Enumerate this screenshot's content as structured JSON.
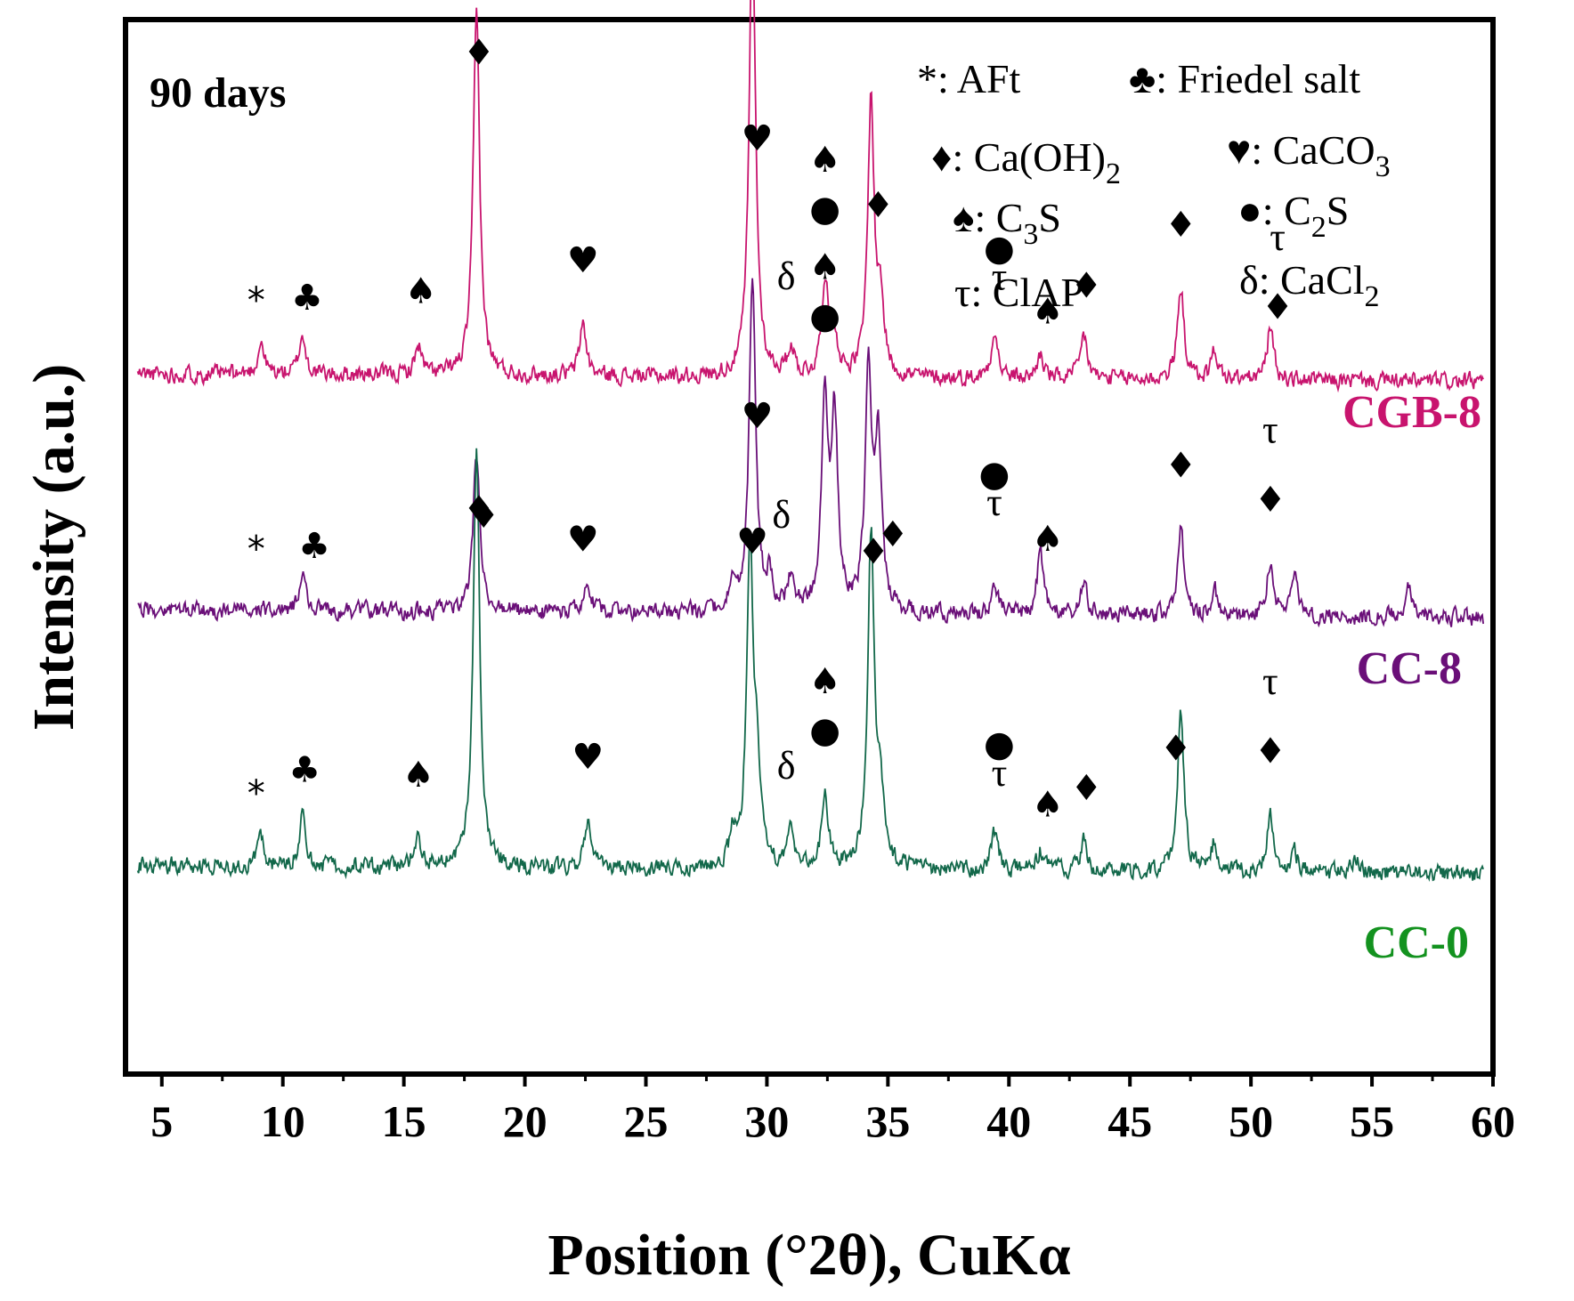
{
  "chart_data": {
    "type": "line",
    "title": "90 days",
    "xlabel": "Position (°2θ), CuKα",
    "ylabel": "Intensity (a.u.)",
    "xlim": [
      3.5,
      60
    ],
    "ylim": [
      0,
      100
    ],
    "x_ticks": [
      5,
      10,
      15,
      20,
      25,
      30,
      35,
      40,
      45,
      50,
      55,
      60
    ],
    "y_ticks_shown": false,
    "legend": [
      {
        "symbol": "*",
        "text": ": AFt"
      },
      {
        "symbol": "♣",
        "text": ": Friedel salt"
      },
      {
        "symbol": "♦",
        "text": ": Ca(OH)",
        "sub": "2"
      },
      {
        "symbol": "♥",
        "text": ": CaCO",
        "sub": "3"
      },
      {
        "symbol": "♠",
        "text": ": C",
        "sub": "3",
        "tail": "S"
      },
      {
        "symbol": "●",
        "text": ": C",
        "sub": "2",
        "tail": "S"
      },
      {
        "symbol": "τ",
        "text": ": ClAP"
      },
      {
        "symbol": "δ",
        "text": ": CaCl",
        "sub": "2"
      }
    ],
    "series": [
      {
        "name": "CGB-8",
        "color": "#c8146e",
        "baseline": 36,
        "tilt": 0.8,
        "noise": 0.75,
        "seed": 11,
        "peaks": [
          [
            9.1,
            3.2
          ],
          [
            10.8,
            4.0
          ],
          [
            15.6,
            3.0
          ],
          [
            18.0,
            37.0
          ],
          [
            22.4,
            5.5
          ],
          [
            29.4,
            46.0
          ],
          [
            31.0,
            3.0
          ],
          [
            32.4,
            10.0
          ],
          [
            32.8,
            4.0
          ],
          [
            34.3,
            28.0
          ],
          [
            34.7,
            7.0
          ],
          [
            39.4,
            5.0
          ],
          [
            41.3,
            2.5
          ],
          [
            43.1,
            4.5
          ],
          [
            47.1,
            9.5
          ],
          [
            48.5,
            3.0
          ],
          [
            50.8,
            5.5
          ]
        ]
      },
      {
        "name": "CC-8",
        "color": "#6a0f78",
        "baseline": 60,
        "tilt": 0.8,
        "noise": 0.75,
        "seed": 29,
        "peaks": [
          [
            10.8,
            4.0
          ],
          [
            18.0,
            16.0
          ],
          [
            22.6,
            3.0
          ],
          [
            28.6,
            3.0
          ],
          [
            29.4,
            34.0
          ],
          [
            30.1,
            3.0
          ],
          [
            31.0,
            3.5
          ],
          [
            32.4,
            21.0
          ],
          [
            32.8,
            19.0
          ],
          [
            34.2,
            24.0
          ],
          [
            34.6,
            17.0
          ],
          [
            39.4,
            3.0
          ],
          [
            41.3,
            6.5
          ],
          [
            43.1,
            3.0
          ],
          [
            47.1,
            9.0
          ],
          [
            48.5,
            2.5
          ],
          [
            50.8,
            5.5
          ],
          [
            51.8,
            4.5
          ],
          [
            56.5,
            3.0
          ]
        ]
      },
      {
        "name": "CC-0",
        "color": "#12684a",
        "baseline": 86,
        "tilt": 0.8,
        "noise": 0.75,
        "seed": 47,
        "peaks": [
          [
            9.1,
            3.0
          ],
          [
            10.8,
            5.0
          ],
          [
            15.6,
            3.0
          ],
          [
            18.0,
            42.0
          ],
          [
            22.6,
            5.0
          ],
          [
            28.6,
            3.0
          ],
          [
            29.3,
            33.0
          ],
          [
            29.6,
            8.0
          ],
          [
            31.0,
            4.0
          ],
          [
            32.4,
            7.5
          ],
          [
            34.3,
            34.0
          ],
          [
            34.7,
            7.0
          ],
          [
            39.4,
            4.0
          ],
          [
            41.3,
            2.0
          ],
          [
            43.1,
            3.0
          ],
          [
            47.1,
            16.0
          ],
          [
            48.5,
            3.0
          ],
          [
            50.8,
            6.0
          ],
          [
            51.8,
            2.0
          ],
          [
            54.3,
            1.5
          ]
        ]
      }
    ],
    "series_labels": [
      {
        "text": "CGB-8",
        "color": "#c8146e"
      },
      {
        "text": "CC-8",
        "color": "#6a0f78"
      },
      {
        "text": "CC-0",
        "color": "#13921f"
      }
    ],
    "phase_markers": [
      {
        "series": "CGB-8",
        "x": 8.9,
        "label": "*"
      },
      {
        "series": "CGB-8",
        "x": 11.0,
        "label": "♣"
      },
      {
        "series": "CGB-8",
        "x": 15.7,
        "label": "♠"
      },
      {
        "series": "CGB-8",
        "x": 18.1,
        "label": "♦"
      },
      {
        "series": "CGB-8",
        "x": 22.4,
        "label": "♥"
      },
      {
        "series": "CGB-8",
        "x": 29.6,
        "label": "♥"
      },
      {
        "series": "CGB-8",
        "x": 30.8,
        "label": "δ"
      },
      {
        "series": "CGB-8",
        "x": 32.4,
        "label": "●"
      },
      {
        "series": "CGB-8",
        "x": 32.4,
        "label": "♠"
      },
      {
        "series": "CGB-8",
        "x": 34.6,
        "label": "♦"
      },
      {
        "series": "CGB-8",
        "x": 39.6,
        "label": "τ"
      },
      {
        "series": "CGB-8",
        "x": 39.6,
        "label": "●"
      },
      {
        "series": "CGB-8",
        "x": 41.6,
        "label": "♠"
      },
      {
        "series": "CGB-8",
        "x": 43.2,
        "label": "♦"
      },
      {
        "series": "CGB-8",
        "x": 47.1,
        "label": "♦"
      },
      {
        "series": "CGB-8",
        "x": 51.1,
        "label": "♦"
      },
      {
        "series": "CGB-8",
        "x": 51.1,
        "label": "τ"
      },
      {
        "series": "CC-8",
        "x": 8.9,
        "label": "*"
      },
      {
        "series": "CC-8",
        "x": 11.3,
        "label": "♣"
      },
      {
        "series": "CC-8",
        "x": 18.3,
        "label": "♦"
      },
      {
        "series": "CC-8",
        "x": 22.4,
        "label": "♥"
      },
      {
        "series": "CC-8",
        "x": 29.6,
        "label": "♥"
      },
      {
        "series": "CC-8",
        "x": 30.6,
        "label": "δ"
      },
      {
        "series": "CC-8",
        "x": 32.4,
        "label": "●"
      },
      {
        "series": "CC-8",
        "x": 32.4,
        "label": "♠"
      },
      {
        "series": "CC-8",
        "x": 35.2,
        "label": "♦"
      },
      {
        "series": "CC-8",
        "x": 39.4,
        "label": "τ"
      },
      {
        "series": "CC-8",
        "x": 39.4,
        "label": "●"
      },
      {
        "series": "CC-8",
        "x": 41.6,
        "label": "♠"
      },
      {
        "series": "CC-8",
        "x": 47.1,
        "label": "♦"
      },
      {
        "series": "CC-8",
        "x": 50.8,
        "label": "♦"
      },
      {
        "series": "CC-8",
        "x": 50.8,
        "label": "τ"
      },
      {
        "series": "CC-0",
        "x": 8.9,
        "label": "*"
      },
      {
        "series": "CC-0",
        "x": 10.9,
        "label": "♣"
      },
      {
        "series": "CC-0",
        "x": 15.6,
        "label": "♠"
      },
      {
        "series": "CC-0",
        "x": 18.1,
        "label": "♦"
      },
      {
        "series": "CC-0",
        "x": 22.6,
        "label": "♥"
      },
      {
        "series": "CC-0",
        "x": 29.4,
        "label": "♥"
      },
      {
        "series": "CC-0",
        "x": 30.8,
        "label": "δ"
      },
      {
        "series": "CC-0",
        "x": 32.4,
        "label": "●"
      },
      {
        "series": "CC-0",
        "x": 32.4,
        "label": "♠"
      },
      {
        "series": "CC-0",
        "x": 34.4,
        "label": "♦"
      },
      {
        "series": "CC-0",
        "x": 39.6,
        "label": "τ"
      },
      {
        "series": "CC-0",
        "x": 39.6,
        "label": "●"
      },
      {
        "series": "CC-0",
        "x": 41.6,
        "label": "♠"
      },
      {
        "series": "CC-0",
        "x": 43.2,
        "label": "♦"
      },
      {
        "series": "CC-0",
        "x": 46.9,
        "label": "♦"
      },
      {
        "series": "CC-0",
        "x": 50.8,
        "label": "♦"
      },
      {
        "series": "CC-0",
        "x": 50.8,
        "label": "τ"
      }
    ]
  }
}
